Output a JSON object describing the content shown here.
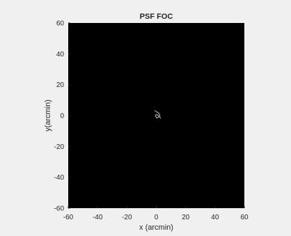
{
  "chart_data": {
    "type": "heatmap",
    "title": "PSF FOC",
    "xlabel": "x (arcmin)",
    "ylabel": "y(arcmin)",
    "xlim": [
      -60,
      60
    ],
    "ylim": [
      -60,
      60
    ],
    "x_ticks": [
      -60,
      -40,
      -20,
      0,
      20,
      40,
      60
    ],
    "y_ticks": [
      60,
      40,
      20,
      0,
      -20,
      -40,
      -60
    ],
    "grid": false,
    "background_color": "#000000",
    "figure_color": "#f0f0f0",
    "feature": {
      "description_color": "#cfcfcf",
      "center_x": 1,
      "center_y": 1,
      "points": [
        [
          -0.8,
          3.0
        ],
        [
          0.6,
          2.2
        ],
        [
          1.8,
          1.4
        ],
        [
          2.4,
          0.2
        ],
        [
          1.6,
          -0.9
        ],
        [
          0.4,
          -1.6
        ],
        [
          -0.5,
          -0.6
        ],
        [
          -0.2,
          0.6
        ],
        [
          0.8,
          0.4
        ],
        [
          2.8,
          -1.4
        ]
      ]
    }
  }
}
